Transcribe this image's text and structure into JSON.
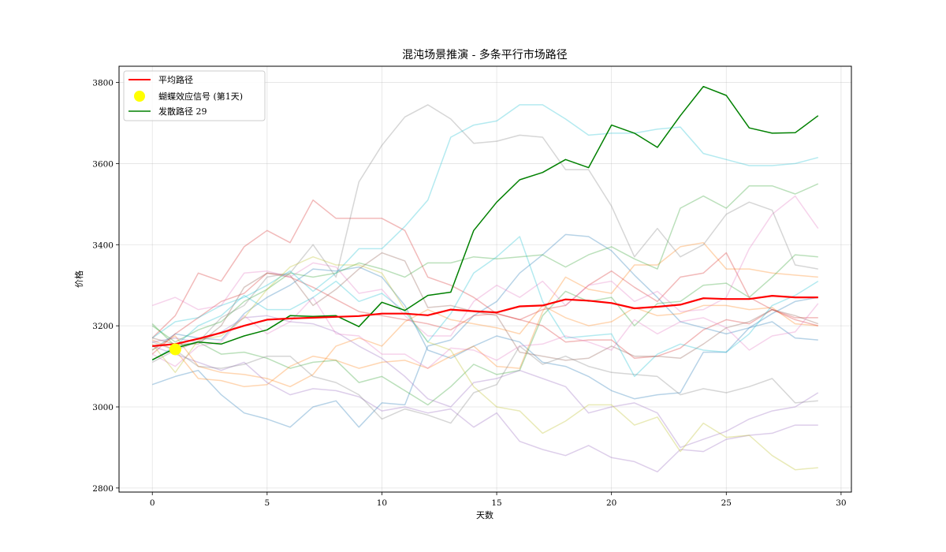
{
  "chart_data": {
    "type": "line",
    "title": "混沌场景推演 - 多条平行市场路径",
    "xlabel": "天数",
    "ylabel": "价格",
    "xlim": [
      -1.45,
      30.45
    ],
    "ylim": [
      2790,
      3840
    ],
    "x_ticks": [
      0,
      5,
      10,
      15,
      20,
      25,
      30
    ],
    "y_ticks": [
      2800,
      3000,
      3200,
      3400,
      3600,
      3800
    ],
    "grid": true,
    "legend_position": "top-left",
    "x": [
      0,
      1,
      2,
      3,
      4,
      5,
      6,
      7,
      8,
      9,
      10,
      11,
      12,
      13,
      14,
      15,
      16,
      17,
      18,
      19,
      20,
      21,
      22,
      23,
      24,
      25,
      26,
      27,
      28,
      29
    ],
    "background_series": [
      {
        "color": "#1f77b4",
        "values": [
          3055,
          3075,
          3090,
          3030,
          2985,
          2970,
          2950,
          3000,
          3015,
          2950,
          3010,
          3005,
          3150,
          3165,
          3225,
          3260,
          3330,
          3375,
          3425,
          3420,
          3385,
          3325,
          3270,
          3210,
          3195,
          3180,
          3195,
          3230,
          3260,
          3270
        ]
      },
      {
        "color": "#1f77b4",
        "values": [
          3140,
          3180,
          3170,
          3165,
          3230,
          3270,
          3300,
          3340,
          3335,
          3345,
          3320,
          3250,
          3140,
          3120,
          3150,
          3175,
          3160,
          3110,
          3100,
          3075,
          3040,
          3020,
          3030,
          3035,
          3135,
          3135,
          3195,
          3210,
          3170,
          3165
        ]
      },
      {
        "color": "#ff7f0e",
        "values": [
          3165,
          3140,
          3070,
          3065,
          3050,
          3055,
          3100,
          3125,
          3115,
          3095,
          3110,
          3115,
          3095,
          3125,
          3150,
          3100,
          3095,
          3235,
          3320,
          3290,
          3280,
          3350,
          3350,
          3395,
          3405,
          3340,
          3340,
          3330,
          3325,
          3320
        ]
      },
      {
        "color": "#ff7f0e",
        "values": [
          3140,
          3175,
          3100,
          3085,
          3080,
          3070,
          3050,
          3080,
          3150,
          3170,
          3150,
          3210,
          3240,
          3215,
          3205,
          3195,
          3180,
          3250,
          3220,
          3200,
          3210,
          3245,
          3225,
          3230,
          3250,
          3250,
          3240,
          3245,
          3205,
          3200
        ]
      },
      {
        "color": "#2ca02c",
        "values": [
          3205,
          3150,
          3160,
          3130,
          3135,
          3120,
          3095,
          3110,
          3115,
          3060,
          3075,
          3040,
          3005,
          3050,
          3105,
          3080,
          3090,
          3225,
          3285,
          3260,
          3270,
          3200,
          3255,
          3260,
          3300,
          3305,
          3270,
          3320,
          3375,
          3370
        ]
      },
      {
        "color": "#2ca02c",
        "values": [
          3200,
          3160,
          3190,
          3210,
          3260,
          3290,
          3330,
          3320,
          3330,
          3355,
          3340,
          3320,
          3355,
          3355,
          3370,
          3365,
          3370,
          3375,
          3345,
          3375,
          3395,
          3365,
          3340,
          3490,
          3520,
          3490,
          3545,
          3545,
          3525,
          3550
        ]
      },
      {
        "color": "#d62728",
        "values": [
          3170,
          3225,
          3330,
          3310,
          3395,
          3435,
          3405,
          3510,
          3465,
          3465,
          3465,
          3435,
          3320,
          3300,
          3270,
          3230,
          3215,
          3240,
          3250,
          3300,
          3335,
          3295,
          3260,
          3320,
          3330,
          3380,
          3270,
          3240,
          3220,
          3220
        ]
      },
      {
        "color": "#d62728",
        "values": [
          3130,
          3180,
          3220,
          3260,
          3280,
          3330,
          3320,
          3295,
          3265,
          3235,
          3225,
          3215,
          3205,
          3190,
          3225,
          3230,
          3215,
          3200,
          3160,
          3165,
          3165,
          3120,
          3125,
          3145,
          3190,
          3215,
          3205,
          3240,
          3215,
          3200
        ]
      },
      {
        "color": "#9467bd",
        "values": [
          3150,
          3130,
          3110,
          3090,
          3110,
          3060,
          3030,
          3045,
          3040,
          3025,
          2990,
          3000,
          2985,
          2995,
          2950,
          2985,
          2915,
          2895,
          2880,
          2905,
          2875,
          2865,
          2840,
          2895,
          2890,
          2920,
          2930,
          2935,
          2955,
          2955
        ]
      },
      {
        "color": "#9467bd",
        "values": [
          3160,
          3170,
          3160,
          3185,
          3220,
          3225,
          3210,
          3205,
          3185,
          3150,
          3120,
          3075,
          3020,
          3000,
          3060,
          3070,
          3090,
          3070,
          3050,
          2985,
          3000,
          3010,
          2985,
          2900,
          2920,
          2940,
          2970,
          2990,
          3000,
          3035
        ]
      },
      {
        "color": "#8c564b",
        "values": [
          3170,
          3155,
          3155,
          3200,
          3295,
          3330,
          3325,
          3250,
          3290,
          3340,
          3380,
          3360,
          3245,
          3250,
          3235,
          3225,
          3135,
          3125,
          3115,
          3120,
          3150,
          3125,
          3125,
          3120,
          3155,
          3195,
          3210,
          3240,
          3225,
          3205
        ]
      },
      {
        "color": "#e377c2",
        "values": [
          3250,
          3270,
          3240,
          3250,
          3330,
          3335,
          3320,
          3355,
          3345,
          3280,
          3290,
          3225,
          3175,
          3175,
          3260,
          3300,
          3270,
          3310,
          3250,
          3300,
          3310,
          3260,
          3285,
          3235,
          3240,
          3270,
          3390,
          3475,
          3520,
          3440
        ]
      },
      {
        "color": "#e377c2",
        "values": [
          3130,
          3100,
          3150,
          3160,
          3225,
          3180,
          3210,
          3270,
          3180,
          3175,
          3130,
          3130,
          3095,
          3145,
          3140,
          3115,
          3150,
          3155,
          3175,
          3160,
          3140,
          3215,
          3180,
          3210,
          3220,
          3195,
          3140,
          3175,
          3185,
          3255
        ]
      },
      {
        "color": "#7f7f7f",
        "values": [
          3110,
          3140,
          3160,
          3220,
          3250,
          3320,
          3330,
          3400,
          3320,
          3555,
          3645,
          3715,
          3745,
          3710,
          3650,
          3655,
          3670,
          3665,
          3585,
          3585,
          3495,
          3370,
          3440,
          3370,
          3400,
          3475,
          3505,
          3485,
          3350,
          3340
        ]
      },
      {
        "color": "#7f7f7f",
        "values": [
          3160,
          3140,
          3100,
          3095,
          3105,
          3125,
          3125,
          3075,
          3060,
          3030,
          2970,
          2995,
          2980,
          2960,
          3035,
          3055,
          3150,
          3105,
          3125,
          3100,
          3085,
          3080,
          3075,
          3030,
          3045,
          3035,
          3050,
          3070,
          3010,
          3015
        ]
      },
      {
        "color": "#bcbd22",
        "values": [
          3155,
          3085,
          3165,
          3175,
          3220,
          3290,
          3345,
          3370,
          3350,
          3350,
          3330,
          3240,
          3160,
          3140,
          3050,
          3000,
          2990,
          2935,
          2965,
          3005,
          3005,
          2955,
          2975,
          2890,
          2960,
          2925,
          2930,
          2880,
          2845,
          2850
        ]
      },
      {
        "color": "#17becf",
        "values": [
          3170,
          3210,
          3220,
          3250,
          3270,
          3300,
          3335,
          3285,
          3330,
          3390,
          3390,
          3445,
          3510,
          3665,
          3695,
          3705,
          3745,
          3745,
          3710,
          3670,
          3675,
          3675,
          3685,
          3690,
          3625,
          3610,
          3595,
          3595,
          3600,
          3615
        ]
      },
      {
        "color": "#17becf",
        "values": [
          3115,
          3150,
          3200,
          3225,
          3275,
          3240,
          3240,
          3270,
          3310,
          3260,
          3280,
          3235,
          3160,
          3230,
          3330,
          3370,
          3420,
          3260,
          3170,
          3175,
          3180,
          3075,
          3130,
          3155,
          3140,
          3135,
          3180,
          3250,
          3275,
          3310
        ]
      }
    ],
    "series": [
      {
        "name": "平均路径",
        "color": "#ff0000",
        "values": [
          3150,
          3155,
          3168,
          3183,
          3200,
          3215,
          3218,
          3220,
          3222,
          3224,
          3230,
          3230,
          3226,
          3240,
          3236,
          3233,
          3248,
          3250,
          3265,
          3262,
          3256,
          3243,
          3247,
          3252,
          3268,
          3266,
          3266,
          3274,
          3270,
          3270
        ]
      },
      {
        "name": "发散路径 29",
        "color": "#008000",
        "values": [
          3116,
          3145,
          3160,
          3155,
          3175,
          3190,
          3225,
          3223,
          3225,
          3198,
          3258,
          3238,
          3275,
          3283,
          3435,
          3505,
          3560,
          3578,
          3610,
          3590,
          3695,
          3675,
          3640,
          3718,
          3790,
          3768,
          3688,
          3675,
          3676,
          3718
        ]
      }
    ],
    "marker": {
      "name": "蝴蝶效应信号 (第1天)",
      "color": "#ffff00",
      "x": 1,
      "y": 3142
    }
  }
}
